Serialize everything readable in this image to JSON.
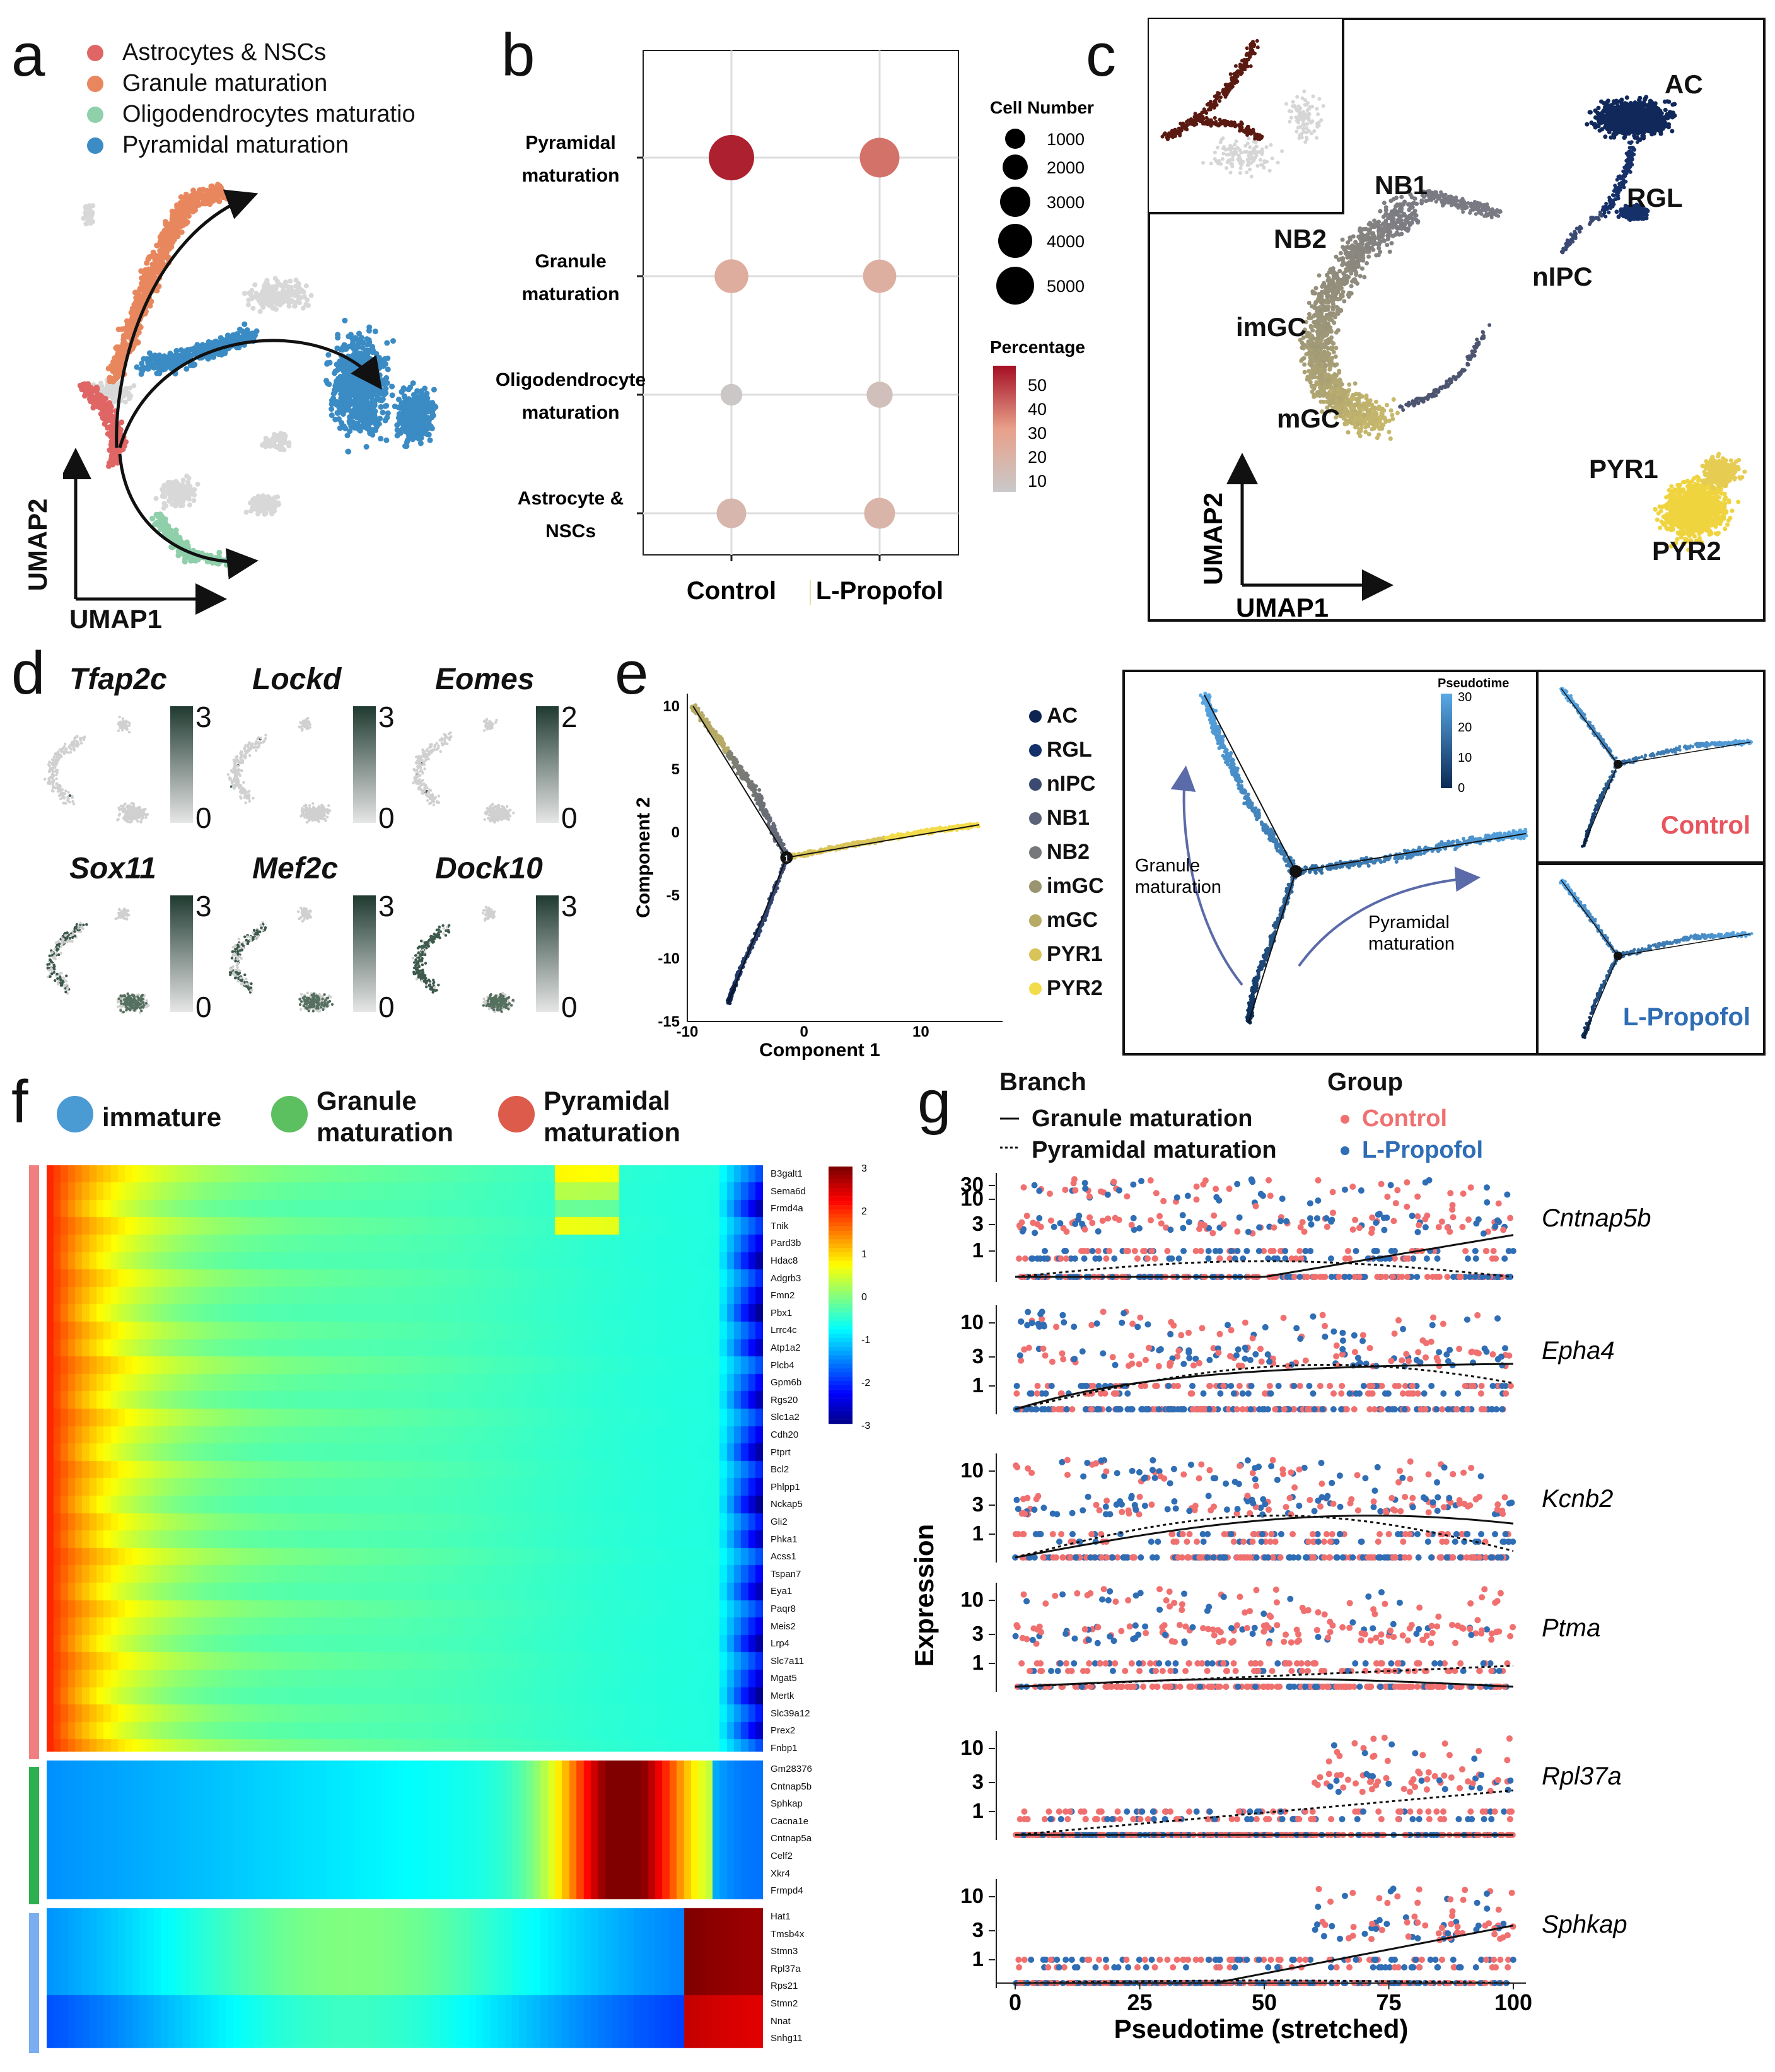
{
  "panel_labels": {
    "a": "a",
    "b": "b",
    "c": "c",
    "d": "d",
    "e": "e",
    "f": "f",
    "g": "g"
  },
  "colors": {
    "astro": "#e06666",
    "granule": "#e8875e",
    "oligo": "#8fcfaa",
    "pyramidal": "#3b8bc4",
    "grey": "#d8d8d8",
    "control": "#f07070",
    "propofol": "#2f6db5",
    "navy": "#0d2a5c",
    "gold": "#e8d44a"
  },
  "panel_a": {
    "legend": [
      "Astrocytes & NSCs",
      "Granule maturation",
      "Oligodendrocytes maturatio",
      "Pyramidal maturation"
    ],
    "legend_colors": [
      "#e06666",
      "#e8875e",
      "#8fcfaa",
      "#3b8bc4"
    ],
    "axis_x": "UMAP1",
    "axis_y": "UMAP2"
  },
  "panel_b": {
    "chart_data": {
      "type": "scatter",
      "title": "",
      "categories_y": [
        "Pyramidal maturation",
        "Granule maturation",
        "Oligodendrocyte maturation",
        "Astrocyte & NSCs"
      ],
      "ytick_lines": [
        [
          "Pyramidal",
          "maturation"
        ],
        [
          "Granule",
          "maturation"
        ],
        [
          "Oligodendrocyte",
          "maturation"
        ],
        [
          "Astrocyte &",
          "NSCs"
        ]
      ],
      "categories_x": [
        "Control",
        "L-Propofol"
      ],
      "series": [
        {
          "name": "Control",
          "cell_number": [
            5000,
            2400,
            700,
            1700
          ],
          "percentage": [
            52,
            22,
            6,
            16
          ]
        },
        {
          "name": "L-Propofol",
          "cell_number": [
            3600,
            2300,
            1200,
            1900
          ],
          "percentage": [
            38,
            21,
            11,
            18
          ]
        }
      ],
      "size_legend_title": "Cell Number",
      "size_legend": [
        1000,
        2000,
        3000,
        4000,
        5000
      ],
      "color_legend_title": "Percentage",
      "color_legend_ticks": [
        50,
        40,
        30,
        20,
        10
      ]
    }
  },
  "panel_c": {
    "clusters": [
      "AC",
      "RGL",
      "nIPC",
      "NB1",
      "NB2",
      "imGC",
      "mGC",
      "PYR1",
      "PYR2"
    ],
    "axis_x": "UMAP1",
    "axis_y": "UMAP2"
  },
  "panel_d": {
    "genes": [
      {
        "name": "Tfap2c",
        "max": "3",
        "min": "0"
      },
      {
        "name": "Lockd",
        "max": "3",
        "min": "0"
      },
      {
        "name": "Eomes",
        "max": "2",
        "min": "0"
      },
      {
        "name": "Sox11",
        "max": "3",
        "min": "0"
      },
      {
        "name": "Mef2c",
        "max": "3",
        "min": "0"
      },
      {
        "name": "Dock10",
        "max": "3",
        "min": "0"
      }
    ]
  },
  "panel_e": {
    "chart_data": {
      "type": "scatter",
      "xlabel": "Component 1",
      "ylabel": "Component 2",
      "xlim": [
        -10,
        17
      ],
      "ylim": [
        -15,
        11
      ],
      "xticks": [
        "-10",
        "0",
        "10"
      ],
      "yticks": [
        "10",
        "5",
        "0",
        "-5",
        "-10",
        "-15"
      ],
      "branch_point": "1"
    },
    "legend": [
      "AC",
      "RGL",
      "nIPC",
      "NB1",
      "NB2",
      "imGC",
      "mGC",
      "PYR1",
      "PYR2"
    ],
    "legend_colors": [
      "#0d2350",
      "#12306a",
      "#3c4a72",
      "#5b6378",
      "#77787c",
      "#9a9570",
      "#b6aa66",
      "#d9c45a",
      "#f2dc4a"
    ],
    "pseudotime_title": "Pseudotime",
    "pseudotime_ticks": [
      "30",
      "20",
      "10",
      "0"
    ],
    "arrow_granule": [
      "Granule",
      "maturation"
    ],
    "arrow_pyramidal": [
      "Pyramidal",
      "maturation"
    ],
    "inset_control": "Control",
    "inset_propofol": "L-Propofol"
  },
  "panel_f": {
    "legend": [
      [
        "immature"
      ],
      [
        "Granule",
        "maturation"
      ],
      [
        "Pyramidal",
        "maturation"
      ]
    ],
    "legend_colors": [
      "#4a9ad4",
      "#5cbf60",
      "#dc5b4b"
    ],
    "scale_ticks": [
      "3",
      "2",
      "1",
      "0",
      "-1",
      "-2",
      "-3"
    ],
    "genes_block1": [
      "B3galt1",
      "Sema6d",
      "Frmd4a",
      "Tnik",
      "Pard3b",
      "Hdac8",
      "Adgrb3",
      "Fmn2",
      "Pbx1",
      "Lrrc4c",
      "Atp1a2",
      "Plcb4",
      "Gpm6b",
      "Rgs20",
      "Slc1a2",
      "Cdh20",
      "Ptprt",
      "Bcl2",
      "Phlpp1",
      "Nckap5",
      "Gli2",
      "Phka1",
      "Acss1",
      "Tspan7",
      "Eya1",
      "Paqr8",
      "Meis2",
      "Lrp4",
      "Slc7a11",
      "Mgat5",
      "Mertk",
      "Slc39a12",
      "Prex2",
      "Fnbp1"
    ],
    "genes_block2": [
      "Gm28376",
      "Cntnap5b",
      "Sphkap",
      "Cacna1e",
      "Cntnap5a",
      "Celf2",
      "Xkr4",
      "Frmpd4"
    ],
    "genes_block3": [
      "Hat1",
      "Tmsb4x",
      "Stmn3",
      "Rpl37a",
      "Rps21",
      "Stmn2",
      "Nnat",
      "Snhg11"
    ]
  },
  "panel_g": {
    "branch_title": "Branch",
    "branch_items": [
      "Granule maturation",
      "Pyramidal maturation"
    ],
    "group_title": "Group",
    "group_items": [
      "Control",
      "L-Propofol"
    ],
    "ylabel": "Expression",
    "xlabel": "Pseudotime (stretched)",
    "xticks": [
      "0",
      "25",
      "50",
      "75",
      "100"
    ],
    "rows": [
      {
        "gene": "Cntnap5b",
        "yticks": [
          "30",
          "10",
          "3",
          "1"
        ]
      },
      {
        "gene": "Epha4",
        "yticks": [
          "10",
          "3",
          "1"
        ]
      },
      {
        "gene": "Kcnb2",
        "yticks": [
          "10",
          "3",
          "1"
        ]
      },
      {
        "gene": "Ptma",
        "yticks": [
          "10",
          "3",
          "1"
        ]
      },
      {
        "gene": "Rpl37a",
        "yticks": [
          "10",
          "3",
          "1"
        ]
      },
      {
        "gene": "Sphkap",
        "yticks": [
          "10",
          "3",
          "1"
        ]
      }
    ]
  }
}
